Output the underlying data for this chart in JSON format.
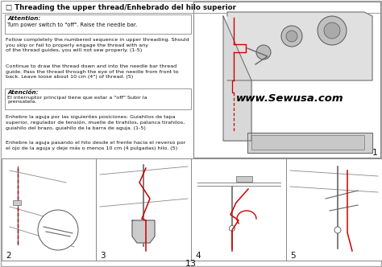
{
  "title": "□ Threading the upper thread/Enhebrado del hilo superior",
  "attention_label": "Attention:",
  "attention_text": "Turn power switch to \"off\". Raise the needle bar.",
  "para1": "Follow completely the numbered sequence in upper threading. Should\nyou skip or fail to properly engage the thread with any\nof the thread guides, you will not sew properly. (1-5)",
  "para2": "Continue to draw the thread down and into the needle bar thread\nguide. Pass the thread through the eye of the needle from front to\nback. Leave loose about 10 cm (4\") of thread. (5)",
  "atencion_label": "Atención:",
  "atencion_text": "El interruptor principal tiene que estar a \"off\" Subir la\nprensatela.",
  "para3": "Enhebre la aguja por las siguientes posiciones: Guiahilos de tapa\nsuperior, regulador de tensión, muelle de tirahilos, palanca tirahilos,\nguiahilo del brazo, guiahilo de la barra de aguja. (1-5)",
  "para4": "Enhebre la aguja pasando el hilo desde el frente hacia el reverso por\nel ojo de la aguja y deje más o menos 10 cm (4 pulgadas) hilo. (5)",
  "watermark": "www.Sewusa.com",
  "page_num": "13",
  "diagram_nums": [
    "1",
    "2",
    "3",
    "4",
    "5"
  ],
  "bg_color": "#ffffff",
  "border_color": "#888888",
  "text_color": "#111111",
  "red_color": "#cc0000",
  "box_bg": "#eeeeee"
}
